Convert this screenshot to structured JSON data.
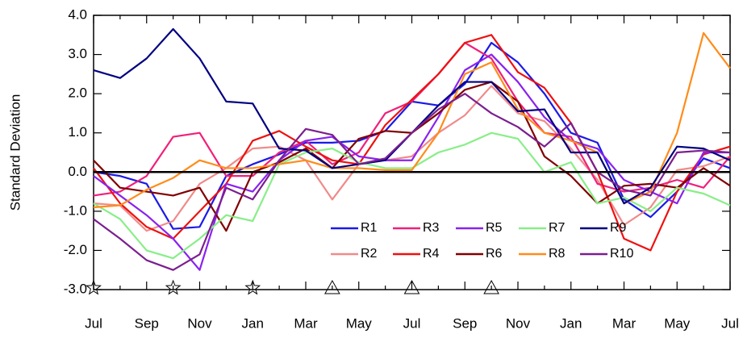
{
  "chart_data": {
    "type": "line",
    "ylabel": "Standard Deviation",
    "categories": [
      "Jul",
      null,
      "Sep",
      null,
      "Nov",
      null,
      "Jan",
      null,
      "Mar",
      null,
      "May",
      null,
      "Jul",
      null,
      "Sep",
      null,
      "Nov",
      null,
      "Jan",
      null,
      "Mar",
      null,
      "May",
      null,
      "Jul"
    ],
    "ylim": [
      -3.0,
      4.0
    ],
    "yticks": [
      {
        "value": -3,
        "label": "-3.0"
      },
      {
        "value": -2,
        "label": "-2.0"
      },
      {
        "value": -1,
        "label": "-1.0"
      },
      {
        "value": 0,
        "label": "0.0"
      },
      {
        "value": 1,
        "label": "1.0"
      },
      {
        "value": 2,
        "label": "2.0"
      },
      {
        "value": 3,
        "label": "3.0"
      },
      {
        "value": 4,
        "label": "4.0"
      }
    ],
    "reference_line": 0,
    "markers": [
      {
        "shape": "star",
        "category": 0,
        "y": -3
      },
      {
        "shape": "star",
        "category": 3,
        "y": -3
      },
      {
        "shape": "star",
        "category": 6,
        "y": -3
      },
      {
        "shape": "triangle",
        "category": 9,
        "y": -3
      },
      {
        "shape": "triangle",
        "category": 12,
        "y": -3
      },
      {
        "shape": "triangle",
        "category": 15,
        "y": -3
      }
    ],
    "series": [
      {
        "name": "R1",
        "color": "#1a1ae8",
        "values": [
          0.0,
          -0.1,
          -0.3,
          -1.45,
          -1.4,
          -0.1,
          0.2,
          0.45,
          0.75,
          0.75,
          0.8,
          1.05,
          1.8,
          1.7,
          2.25,
          3.3,
          2.8,
          2.0,
          1.0,
          0.75,
          -0.7,
          -1.15,
          -0.5,
          0.35,
          0.1
        ]
      },
      {
        "name": "R2",
        "color": "#f08a8a",
        "values": [
          -0.8,
          -0.85,
          -1.5,
          -1.25,
          -0.3,
          0.1,
          0.6,
          0.65,
          0.3,
          -0.7,
          0.2,
          0.3,
          0.4,
          1.0,
          1.45,
          2.2,
          1.5,
          1.3,
          0.6,
          -0.2,
          -1.35,
          -0.9,
          0.05,
          0.15,
          0.4
        ]
      },
      {
        "name": "R3",
        "color": "#f0207a",
        "values": [
          -0.6,
          -0.5,
          -0.1,
          0.9,
          1.0,
          -0.1,
          -0.1,
          0.5,
          0.8,
          0.2,
          0.5,
          1.5,
          1.8,
          2.5,
          3.3,
          2.9,
          1.8,
          1.0,
          0.9,
          -0.3,
          -0.5,
          -0.4,
          -0.2,
          -0.4,
          0.4
        ]
      },
      {
        "name": "R4",
        "color": "#ee1111",
        "values": [
          0.1,
          -0.8,
          -1.4,
          -1.7,
          -1.0,
          -0.3,
          0.8,
          1.05,
          0.65,
          0.3,
          0.2,
          1.2,
          1.85,
          2.5,
          3.3,
          3.5,
          2.55,
          2.15,
          1.25,
          0.0,
          -1.7,
          -2.0,
          -0.5,
          0.45,
          0.65
        ]
      },
      {
        "name": "R5",
        "color": "#8a22ee",
        "values": [
          -0.1,
          -0.6,
          -1.1,
          -1.7,
          -2.5,
          -0.3,
          -0.5,
          0.3,
          0.8,
          0.9,
          0.4,
          0.3,
          0.3,
          1.4,
          2.6,
          3.0,
          2.3,
          1.4,
          0.8,
          0.6,
          -0.2,
          -0.5,
          -0.8,
          0.5,
          0.5
        ]
      },
      {
        "name": "R6",
        "color": "#800000",
        "values": [
          0.3,
          -0.4,
          -0.5,
          -0.6,
          -0.4,
          -1.5,
          0.0,
          0.25,
          0.6,
          0.1,
          0.85,
          1.05,
          1.0,
          1.5,
          2.1,
          2.3,
          1.8,
          0.4,
          -0.1,
          -0.8,
          -0.35,
          -0.3,
          -0.4,
          0.1,
          -0.35
        ]
      },
      {
        "name": "R7",
        "color": "#88ee88",
        "values": [
          -0.8,
          -1.2,
          -2.0,
          -2.2,
          -1.7,
          -1.1,
          -1.25,
          0.2,
          0.5,
          0.6,
          0.25,
          0.1,
          0.1,
          0.5,
          0.7,
          1.0,
          0.85,
          0.0,
          0.25,
          -0.8,
          -0.65,
          -1.0,
          -0.4,
          -0.55,
          -0.85
        ]
      },
      {
        "name": "R8",
        "color": "#ff8c1a",
        "values": [
          -0.9,
          -0.85,
          -0.45,
          -0.15,
          0.3,
          0.1,
          0.1,
          0.2,
          0.3,
          0.1,
          0.1,
          0.05,
          0.05,
          1.0,
          2.5,
          2.8,
          1.6,
          1.0,
          0.8,
          0.5,
          -0.8,
          -0.5,
          1.0,
          3.55,
          2.65
        ]
      },
      {
        "name": "R9",
        "color": "#000080",
        "values": [
          2.6,
          2.4,
          2.9,
          3.65,
          2.9,
          1.8,
          1.75,
          0.6,
          0.55,
          0.1,
          0.2,
          0.3,
          1.0,
          1.7,
          2.3,
          2.3,
          1.55,
          1.6,
          0.5,
          0.5,
          -0.8,
          -0.4,
          0.65,
          0.6,
          0.3
        ]
      },
      {
        "name": "R10",
        "color": "#7b1f8f",
        "values": [
          -1.2,
          -1.7,
          -2.25,
          -2.5,
          -2.1,
          -0.4,
          -0.7,
          0.3,
          1.1,
          0.95,
          0.2,
          0.35,
          1.0,
          1.6,
          2.0,
          1.5,
          1.15,
          0.65,
          1.25,
          0.0,
          -0.45,
          -0.6,
          0.5,
          0.55,
          0.5
        ]
      }
    ]
  }
}
